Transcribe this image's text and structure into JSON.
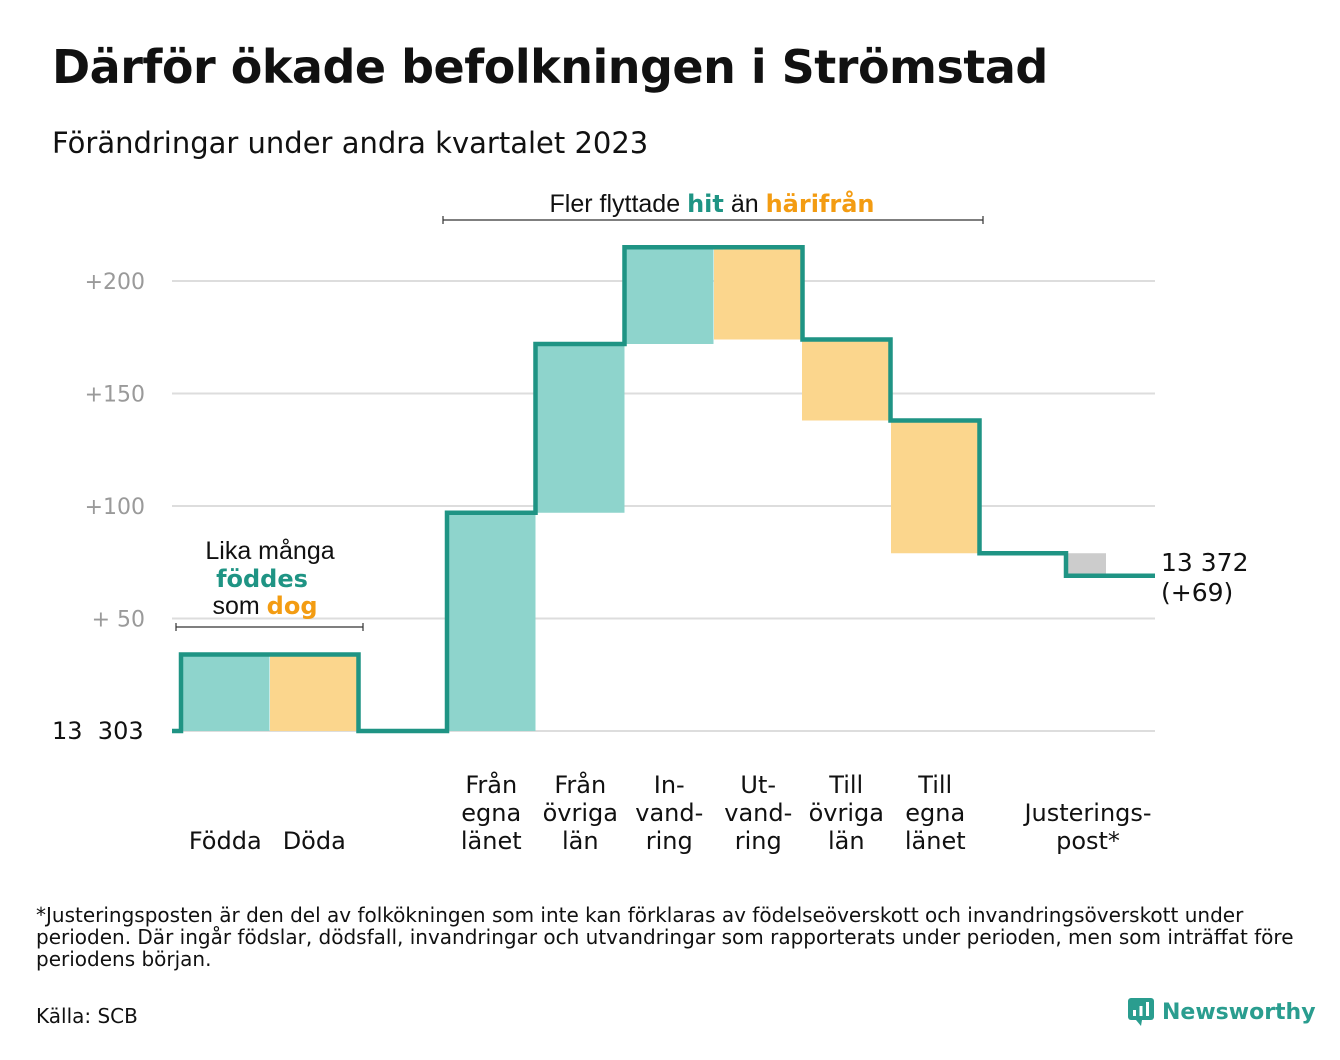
{
  "title": "Därför ökade befolkningen i Strömstad",
  "subtitle": "Förändringar under andra kvartalet 2023",
  "colors": {
    "increase": "#8ed4cc",
    "decrease": "#fbd68d",
    "adjustment": "#cccccc",
    "line": "#1f9484",
    "teal_text": "#1f9484",
    "orange_text": "#f39c12",
    "axis_text": "#9a9a9a",
    "grid": "#dddddd"
  },
  "annotations": {
    "births_deaths": {
      "line1": "Lika många",
      "highlight1": "föddes",
      "line3_prefix": "som ",
      "highlight2": "dog"
    },
    "migration": {
      "prefix": "Fler flyttade ",
      "highlight1": "hit",
      "middle": " än ",
      "highlight2": "härifrån"
    }
  },
  "chart_data": {
    "type": "waterfall",
    "baseline_label": "13  303",
    "end_label": {
      "line1": "13 372",
      "line2": "(+69)"
    },
    "ylim": [
      0,
      215
    ],
    "yticks": [
      {
        "value": 50,
        "label": "+  50"
      },
      {
        "value": 100,
        "label": "+100"
      },
      {
        "value": 150,
        "label": "+150"
      },
      {
        "value": 200,
        "label": "+200"
      }
    ],
    "steps": [
      {
        "label_lines": [
          "Födda"
        ],
        "change": 34,
        "kind": "increase"
      },
      {
        "label_lines": [
          "Döda"
        ],
        "change": -34,
        "kind": "decrease"
      },
      {
        "label_lines": [
          "Från",
          "egna",
          "länet"
        ],
        "change": 97,
        "kind": "increase"
      },
      {
        "label_lines": [
          "Från",
          "övriga",
          "län"
        ],
        "change": 75,
        "kind": "increase"
      },
      {
        "label_lines": [
          "In-",
          "vand-",
          "ring"
        ],
        "change": 43,
        "kind": "increase"
      },
      {
        "label_lines": [
          "Ut-",
          "vand-",
          "ring"
        ],
        "change": -41,
        "kind": "decrease"
      },
      {
        "label_lines": [
          "Till",
          "övriga",
          "län"
        ],
        "change": -36,
        "kind": "decrease"
      },
      {
        "label_lines": [
          "Till",
          "egna",
          "länet"
        ],
        "change": -59,
        "kind": "decrease"
      },
      {
        "label_lines": [
          "Justerings-",
          "post*"
        ],
        "change": -10,
        "kind": "adjustment"
      }
    ],
    "final_change": 69
  },
  "footnote": "*Justeringsposten är den del av folkökningen som inte kan förklaras av födelseöverskott och invandringsöverskott under perioden. Där ingår födslar, dödsfall, invandringar och utvandringar som rapporterats under perioden, men som inträffat före periodens början.",
  "source": "Källa: SCB",
  "brand": "Newsworthy"
}
